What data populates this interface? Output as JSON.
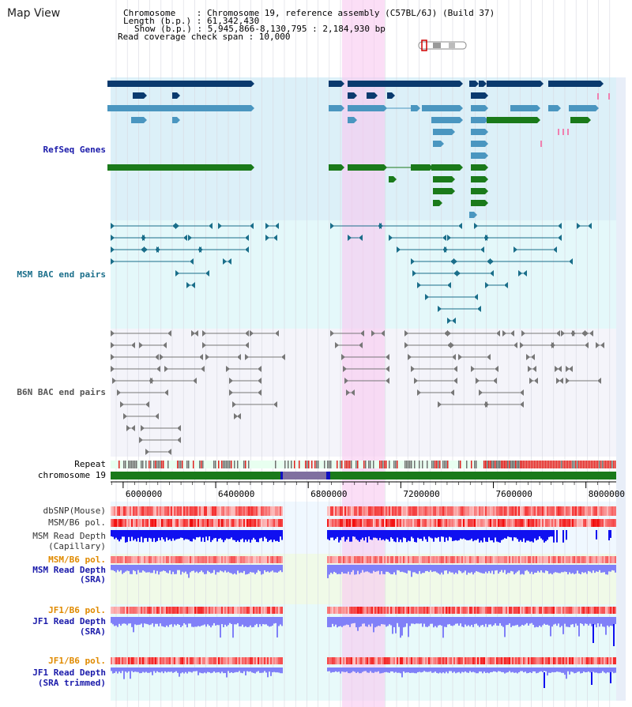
{
  "page_title": "Map View",
  "info": {
    "chromosome_line": "Chromosome    : Chromosome 19, reference assembly (C57BL/6J) (Build 37)",
    "length_line": "Length (b.p.) : 61,342,430",
    "show_line": "Show (b.p.) : 5,945,866-8,130,795 : 2,184,930 bp",
    "coverage_line": "Read coverage check span : 10,000"
  },
  "track_labels": {
    "refseq": "RefSeq Genes",
    "msm_bac": "MSM BAC end pairs",
    "b6n_bac": "B6N BAC end pairs",
    "repeat": "Repeat",
    "chromosome": "chromosome 19",
    "dbsnp": "dbSNP(Mouse)",
    "msm_b6_pol": "MSM/B6 pol.",
    "msm_depth_cap_1": "MSM Read Depth",
    "msm_depth_cap_2": "(Capillary)",
    "msm_b6_pol_2": "MSM/B6 pol.",
    "msm_depth_sra_1": "MSM Read Depth",
    "msm_depth_sra_2": "(SRA)",
    "jf1_b6_pol": "JF1/B6 pol.",
    "jf1_depth_sra_1": "JF1 Read Depth",
    "jf1_depth_sra_2": "(SRA)",
    "jf1_b6_pol_2": "JF1/B6 pol.",
    "jf1_depth_trim_1": "JF1 Read Depth",
    "jf1_depth_trim_2": "(SRA trimmed)"
  },
  "axis": {
    "ticks": [
      "6000000",
      "6400000",
      "6800000",
      "7200000",
      "7600000",
      "8000000"
    ],
    "view_start": 5945866,
    "view_end": 8130795
  },
  "colors": {
    "refseq_bg": "#dcf0f8",
    "msm_bg": "#e4f8fa",
    "b6n_bg": "#f4f4fa",
    "highlight": "#f8c8f0",
    "gene_dark": "#0a3a6e",
    "gene_mid": "#4a96c0",
    "gene_green": "#1a7a1a",
    "msm_pair": "#1a6e8a",
    "b6n_pair": "#777777",
    "chromosome": "#1a7a1a",
    "pol": "#f04040",
    "depth_dark": "#1010f0",
    "depth_light": "#8080f8",
    "label_blue": "#1a1aaa",
    "label_teal": "#1a6e8a",
    "label_orange": "#e08a00"
  }
}
